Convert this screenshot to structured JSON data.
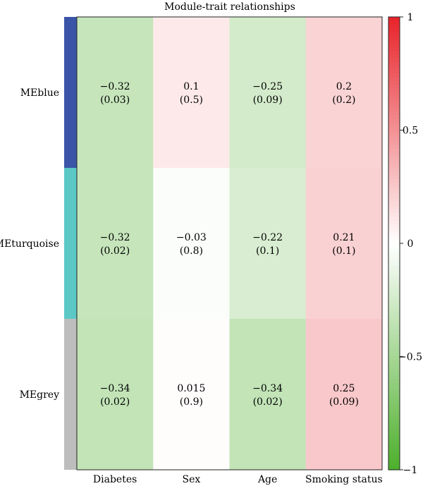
{
  "chart_data": {
    "type": "heatmap",
    "title": "Module-trait relationships",
    "rows": [
      {
        "label": "MEblue",
        "color": "#3a55a8"
      },
      {
        "label": "MEturquoise",
        "color": "#5cc8c6"
      },
      {
        "label": "MEgrey",
        "color": "#bdbdbd"
      }
    ],
    "columns": [
      "Diabetes",
      "Sex",
      "Age",
      "Smoking status"
    ],
    "values": [
      [
        -0.32,
        0.1,
        -0.25,
        0.2
      ],
      [
        -0.32,
        -0.03,
        -0.22,
        0.21
      ],
      [
        -0.34,
        0.015,
        -0.34,
        0.25
      ]
    ],
    "cell_labels": [
      [
        "−0.32",
        "0.1",
        "−0.25",
        "0.2"
      ],
      [
        "−0.32",
        "−0.03",
        "−0.22",
        "0.21"
      ],
      [
        "−0.34",
        "0.015",
        "−0.34",
        "0.25"
      ]
    ],
    "pvalue_labels": [
      [
        "(0.03)",
        "(0.5)",
        "(0.09)",
        "(0.2)"
      ],
      [
        "(0.02)",
        "(0.8)",
        "(0.1)",
        "(0.1)"
      ],
      [
        "(0.02)",
        "(0.9)",
        "(0.02)",
        "(0.09)"
      ]
    ],
    "colorscale": {
      "min": -1,
      "max": 1,
      "low_color": "#4daf2c",
      "mid_color": "#ffffff",
      "high_color": "#e8232a",
      "ticks": [
        1,
        0.5,
        0,
        -0.5,
        -1
      ],
      "tick_labels": [
        "1",
        "0.5",
        "0",
        "−0.5",
        "−1"
      ]
    }
  }
}
